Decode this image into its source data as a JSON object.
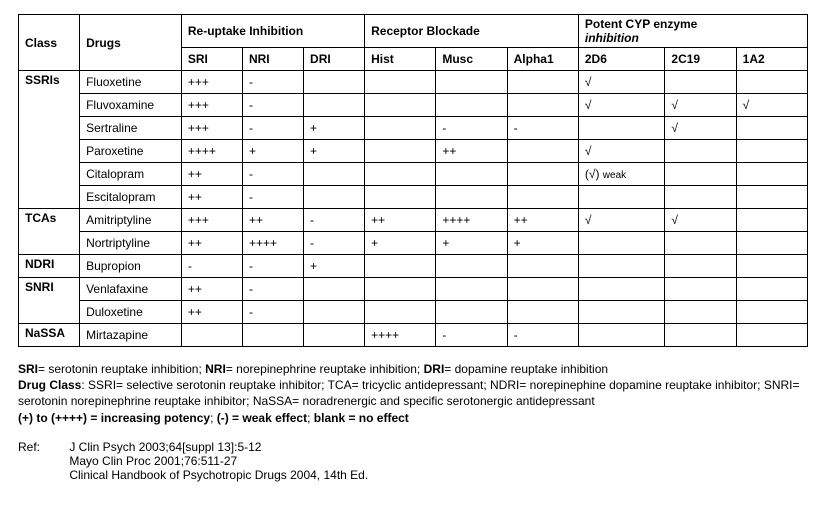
{
  "table": {
    "headers": {
      "class": "Class",
      "drugs": "Drugs",
      "reuptake": "Re-uptake Inhibition",
      "receptor": "Receptor Blockade",
      "cyp_line1": "Potent CYP enzyme",
      "cyp_line2": "inhibition",
      "sri": "SRI",
      "nri": "NRI",
      "dri": "DRI",
      "hist": "Hist",
      "musc": "Musc",
      "alpha1": "Alpha1",
      "d2d6": "2D6",
      "c2c19": "2C19",
      "a1a2": "1A2"
    },
    "groups": [
      {
        "class": "SSRIs",
        "rows": [
          {
            "drug": "Fluoxetine",
            "sri": "+++",
            "nri": "-",
            "dri": "",
            "hist": "",
            "musc": "",
            "alpha1": "",
            "d2d6": "√",
            "c2c19": "",
            "a1a2": ""
          },
          {
            "drug": "Fluvoxamine",
            "sri": "+++",
            "nri": "-",
            "dri": "",
            "hist": "",
            "musc": "",
            "alpha1": "",
            "d2d6": "√",
            "c2c19": "√",
            "a1a2": "√"
          },
          {
            "drug": "Sertraline",
            "sri": "+++",
            "nri": "-",
            "dri": "+",
            "hist": "",
            "musc": "-",
            "alpha1": "-",
            "d2d6": "",
            "c2c19": "√",
            "a1a2": ""
          },
          {
            "drug": "Paroxetine",
            "sri": "++++",
            "nri": "+",
            "dri": "+",
            "hist": "",
            "musc": "++",
            "alpha1": "",
            "d2d6": "√",
            "c2c19": "",
            "a1a2": ""
          },
          {
            "drug": "Citalopram",
            "sri": "++",
            "nri": "-",
            "dri": "",
            "hist": "",
            "musc": "",
            "alpha1": "",
            "d2d6": "(√)",
            "d2d6_note": "weak",
            "c2c19": "",
            "a1a2": ""
          },
          {
            "drug": "Escitalopram",
            "sri": "++",
            "nri": "-",
            "dri": "",
            "hist": "",
            "musc": "",
            "alpha1": "",
            "d2d6": "",
            "c2c19": "",
            "a1a2": ""
          }
        ]
      },
      {
        "class": "TCAs",
        "rows": [
          {
            "drug": "Amitriptyline",
            "sri": "+++",
            "nri": "++",
            "dri": "-",
            "hist": "++",
            "musc": "++++",
            "alpha1": "++",
            "d2d6": "√",
            "c2c19": "√",
            "a1a2": ""
          },
          {
            "drug": "Nortriptyline",
            "sri": "++",
            "nri": "++++",
            "dri": "-",
            "hist": "+",
            "musc": "+",
            "alpha1": "+",
            "d2d6": "",
            "c2c19": "",
            "a1a2": ""
          }
        ]
      },
      {
        "class": "NDRI",
        "rows": [
          {
            "drug": "Bupropion",
            "sri": "-",
            "nri": "-",
            "dri": "+",
            "hist": "",
            "musc": "",
            "alpha1": "",
            "d2d6": "",
            "c2c19": "",
            "a1a2": ""
          }
        ]
      },
      {
        "class": "SNRI",
        "rows": [
          {
            "drug": "Venlafaxine",
            "sri": "++",
            "nri": "-",
            "dri": "",
            "hist": "",
            "musc": "",
            "alpha1": "",
            "d2d6": "",
            "c2c19": "",
            "a1a2": ""
          },
          {
            "drug": "Duloxetine",
            "sri": "++",
            "nri": "-",
            "dri": "",
            "hist": "",
            "musc": "",
            "alpha1": "",
            "d2d6": "",
            "c2c19": "",
            "a1a2": ""
          }
        ]
      },
      {
        "class": "NaSSA",
        "rows": [
          {
            "drug": "Mirtazapine",
            "sri": "",
            "nri": "",
            "dri": "",
            "hist": "++++",
            "musc": "-",
            "alpha1": "-",
            "d2d6": "",
            "c2c19": "",
            "a1a2": ""
          }
        ]
      }
    ]
  },
  "legend": {
    "sri_label": "SRI",
    "sri_text": "= serotonin reuptake inhibition; ",
    "nri_label": "NRI",
    "nri_text": "= norepinephrine reuptake inhibition; ",
    "dri_label": "DRI",
    "dri_text": "= dopamine reuptake inhibition",
    "drugclass_label": "Drug Class",
    "drugclass_text": ": SSRI= selective serotonin reuptake inhibitor; TCA= tricyclic antidepressant; NDRI= norepinephine dopamine reuptake inhibitor; SNRI= serotonin norepinephrine reuptake inhibitor; NaSSA= noradrenergic and specific serotonergic antidepressant",
    "potency": "(+) to (++++) = increasing potency",
    "weak": "(-) = weak effect",
    "blank": "blank = no effect",
    "sep": "; "
  },
  "refs": {
    "label": "Ref:",
    "r1": "J Clin Psych 2003;64[suppl 13]:5-12",
    "r2": "Mayo Clin Proc 2001;76:511-27",
    "r3": "Clinical Handbook of Psychotropic Drugs 2004, 14th Ed."
  }
}
